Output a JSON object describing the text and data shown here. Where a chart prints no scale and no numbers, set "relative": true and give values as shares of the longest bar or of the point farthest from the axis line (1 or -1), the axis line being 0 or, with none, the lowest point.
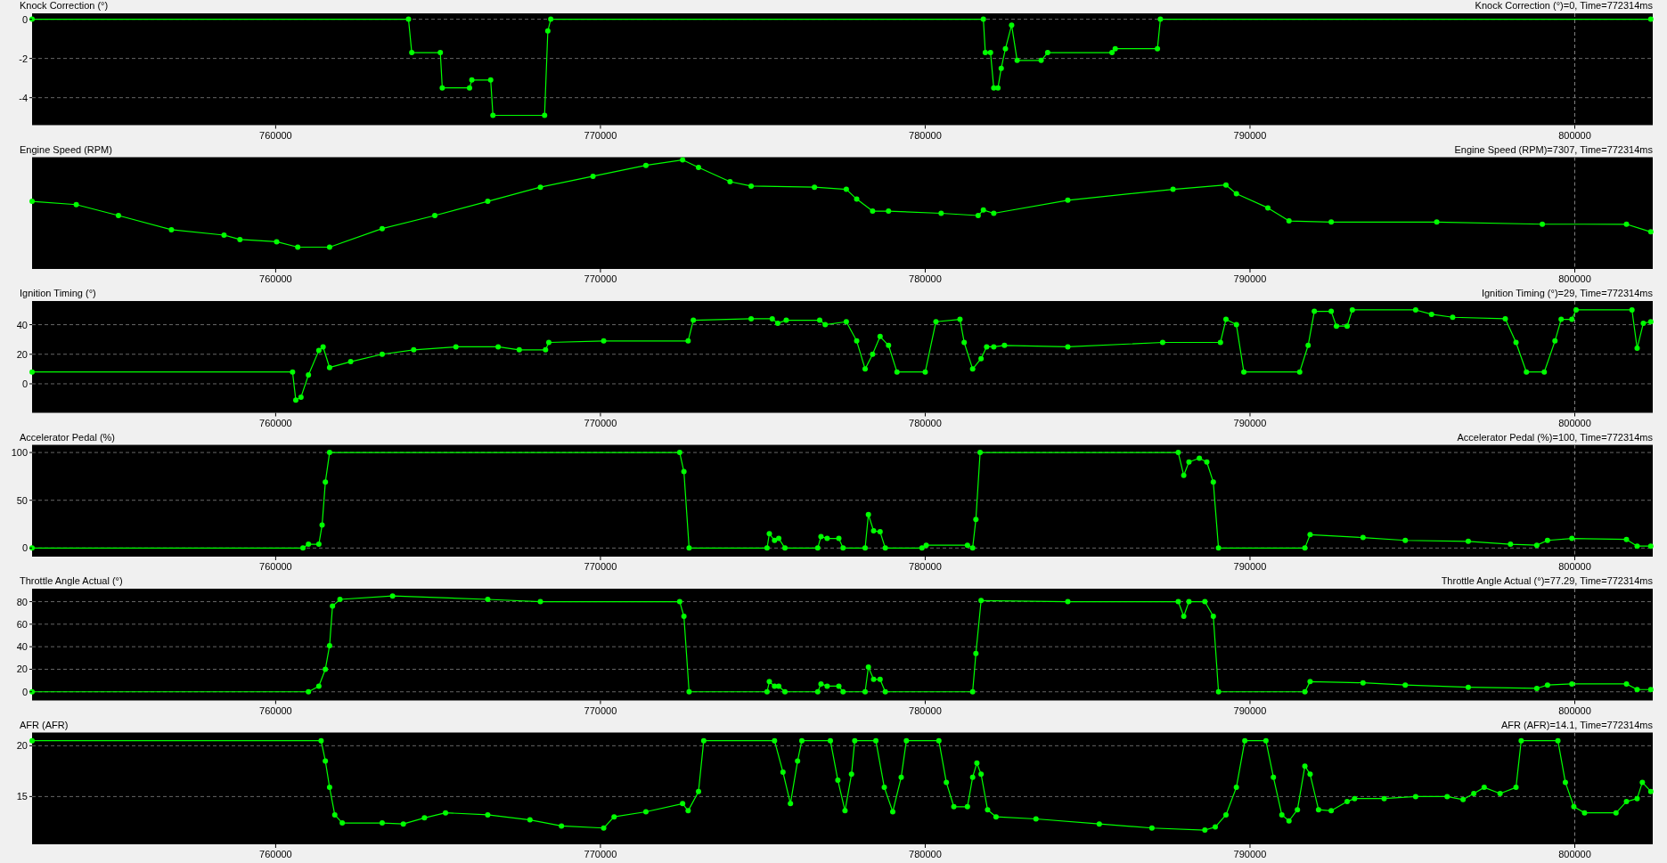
{
  "chart_data": [
    {
      "type": "line",
      "title": "Knock Correction (°)",
      "annotations": [
        "Knock Correction (°)=0, Time=772314ms"
      ],
      "marker": "circle",
      "grid": "y",
      "xlim": [
        752500,
        802400
      ],
      "xticks": [
        760000,
        770000,
        780000,
        790000,
        800000
      ],
      "ylim": [
        -5.4,
        0.3
      ],
      "yticks": [
        -4,
        -2,
        0
      ],
      "ref_lines": [
        {
          "axis": "x",
          "value": 800000,
          "color": "#808080",
          "line_style": "dashed"
        }
      ],
      "x": [
        752500,
        764090,
        764190,
        765070,
        765130,
        765970,
        766040,
        766620,
        766690,
        768280,
        768380,
        768470,
        781790,
        781850,
        782010,
        782110,
        782240,
        782340,
        782470,
        782660,
        782830,
        783570,
        783770,
        785750,
        785850,
        787150,
        787240,
        802340
      ],
      "series": [
        {
          "color": "#00ff00",
          "values": [
            0,
            0,
            -1.7,
            -1.7,
            -3.5,
            -3.5,
            -3.1,
            -3.1,
            -4.9,
            -4.9,
            -0.6,
            0,
            0,
            -1.7,
            -1.7,
            -3.5,
            -3.5,
            -2.5,
            -1.5,
            -0.3,
            -2.1,
            -2.1,
            -1.7,
            -1.7,
            -1.5,
            -1.5,
            0,
            0
          ]
        }
      ]
    },
    {
      "type": "line",
      "title": "Engine Speed (RPM)",
      "annotations": [
        "Engine Speed (RPM)=7307, Time=772314ms"
      ],
      "marker": "circle",
      "relative": true,
      "xlim": [
        752500,
        802400
      ],
      "xticks": [
        760000,
        770000,
        780000,
        790000,
        800000
      ],
      "ref_lines": [
        {
          "axis": "x",
          "value": 800000,
          "color": "#808080",
          "line_style": "dashed"
        }
      ],
      "x": [
        752500,
        753860,
        755160,
        756790,
        758410,
        758900,
        760030,
        760680,
        761660,
        763280,
        764900,
        766530,
        768150,
        769770,
        771400,
        772530,
        773020,
        773990,
        774640,
        776590,
        777570,
        777890,
        778380,
        778870,
        780490,
        781630,
        781790,
        782110,
        784390,
        787630,
        789260,
        789580,
        790550,
        791200,
        792500,
        795750,
        799000,
        801590,
        802340
      ],
      "series": [
        {
          "color": "#00ff00",
          "values": [
            0.62,
            0.59,
            0.49,
            0.36,
            0.31,
            0.27,
            0.25,
            0.2,
            0.2,
            0.37,
            0.49,
            0.62,
            0.75,
            0.85,
            0.95,
            1,
            0.93,
            0.8,
            0.76,
            0.75,
            0.73,
            0.64,
            0.53,
            0.53,
            0.51,
            0.49,
            0.54,
            0.51,
            0.63,
            0.73,
            0.77,
            0.69,
            0.56,
            0.44,
            0.43,
            0.43,
            0.41,
            0.41,
            0.34
          ]
        }
      ]
    },
    {
      "type": "line",
      "title": "Ignition Timing (°)",
      "annotations": [
        "Ignition Timing (°)=29, Time=772314ms"
      ],
      "marker": "circle",
      "grid": "y",
      "xlim": [
        752500,
        802400
      ],
      "xticks": [
        760000,
        770000,
        780000,
        790000,
        800000
      ],
      "ylim": [
        -19.6,
        56
      ],
      "yticks": [
        0,
        20,
        40
      ],
      "ref_lines": [
        {
          "axis": "x",
          "value": 800000,
          "color": "#808080",
          "line_style": "dashed"
        }
      ],
      "x": [
        752500,
        760520,
        760620,
        760780,
        761010,
        761330,
        761460,
        761660,
        762310,
        763280,
        764250,
        765550,
        766850,
        767500,
        768310,
        768410,
        770100,
        772700,
        772860,
        774640,
        775290,
        775460,
        775720,
        776750,
        776920,
        777570,
        777890,
        778150,
        778380,
        778610,
        778870,
        779130,
        780000,
        780330,
        781070,
        781200,
        781460,
        781720,
        781890,
        782110,
        782440,
        784390,
        787310,
        789090,
        789260,
        789580,
        789810,
        791530,
        791790,
        791980,
        792500,
        792660,
        792990,
        793150,
        795100,
        795590,
        796240,
        797860,
        798190,
        798510,
        799060,
        799390,
        799580,
        799910,
        800040,
        801760,
        801920,
        802110,
        802340
      ],
      "series": [
        {
          "color": "#00ff00",
          "values": [
            8,
            8,
            -11,
            -9,
            6,
            22.5,
            25,
            11,
            15,
            20,
            23,
            25,
            25,
            23,
            23,
            28,
            29,
            29,
            43,
            44,
            44,
            41,
            43,
            43,
            40,
            42,
            29,
            10,
            20,
            32,
            26,
            8,
            8,
            42,
            43.6,
            28,
            10,
            17,
            25,
            25,
            26,
            25,
            28,
            28,
            43.6,
            40,
            8,
            8,
            26,
            49,
            49,
            39,
            39,
            50,
            50,
            47,
            45,
            44,
            28,
            8,
            8,
            29,
            43.6,
            43.6,
            50,
            50,
            24,
            41,
            42
          ]
        }
      ]
    },
    {
      "type": "line",
      "title": "Accelerator Pedal (%)",
      "annotations": [
        "Accelerator Pedal (%)=100, Time=772314ms"
      ],
      "marker": "circle",
      "grid": "y",
      "xlim": [
        752500,
        802400
      ],
      "xticks": [
        760000,
        770000,
        780000,
        790000,
        800000
      ],
      "ylim": [
        -9,
        108
      ],
      "yticks": [
        0,
        50,
        100
      ],
      "ref_lines": [
        {
          "axis": "x",
          "value": 800000,
          "color": "#808080",
          "line_style": "dashed"
        }
      ],
      "x": [
        752500,
        760840,
        761010,
        761330,
        761430,
        761530,
        761660,
        772440,
        772570,
        772730,
        775130,
        775200,
        775360,
        775490,
        775680,
        776690,
        776790,
        776980,
        777340,
        777470,
        778150,
        778250,
        778410,
        778610,
        778770,
        779900,
        780030,
        781300,
        781460,
        781560,
        781690,
        787790,
        787960,
        788120,
        788440,
        788670,
        788870,
        789030,
        791690,
        791850,
        793480,
        794780,
        796720,
        798020,
        798830,
        799160,
        799910,
        801590,
        801920,
        802340
      ],
      "series": [
        {
          "color": "#00ff00",
          "values": [
            0,
            0,
            4,
            4,
            24,
            69,
            100,
            100,
            80,
            0,
            0,
            15,
            8,
            10,
            0,
            0,
            12,
            10,
            10,
            0,
            0,
            35,
            18,
            17,
            0,
            0,
            3,
            3,
            0,
            30,
            100,
            100,
            76,
            90,
            94,
            90,
            69,
            0,
            0,
            14,
            11,
            8,
            7,
            4,
            3,
            8,
            10,
            9,
            2,
            2
          ]
        }
      ]
    },
    {
      "type": "line",
      "title": "Throttle Angle Actual (°)",
      "annotations": [
        "Throttle Angle Actual (°)=77.29, Time=772314ms"
      ],
      "marker": "circle",
      "grid": "y",
      "xlim": [
        752500,
        802400
      ],
      "xticks": [
        760000,
        770000,
        780000,
        790000,
        800000
      ],
      "ylim": [
        -7.7,
        91.5
      ],
      "yticks": [
        0,
        20,
        40,
        60,
        80
      ],
      "ref_lines": [
        {
          "axis": "x",
          "value": 800000,
          "color": "#808080",
          "line_style": "dashed"
        }
      ],
      "x": [
        752500,
        761010,
        761330,
        761530,
        761660,
        761750,
        761980,
        763600,
        766530,
        768150,
        772440,
        772570,
        772730,
        775130,
        775200,
        775360,
        775490,
        775680,
        776690,
        776790,
        776980,
        777340,
        777470,
        778150,
        778250,
        778410,
        778610,
        778770,
        781460,
        781560,
        781720,
        784390,
        787790,
        787960,
        788120,
        788610,
        788870,
        789030,
        791690,
        791850,
        793480,
        794780,
        796720,
        798830,
        799160,
        799910,
        801590,
        801920,
        802340
      ],
      "series": [
        {
          "color": "#00ff00",
          "values": [
            0,
            0,
            5,
            20,
            41,
            76,
            82,
            85,
            82,
            80,
            80,
            67,
            0,
            0,
            9,
            5,
            5,
            0,
            0,
            7,
            5,
            5,
            0,
            0,
            22,
            11,
            11,
            0,
            0,
            34,
            81,
            80,
            80,
            67,
            80,
            80,
            67,
            0,
            0,
            9,
            8,
            6,
            4,
            3,
            6,
            7,
            7,
            2,
            2
          ]
        }
      ]
    },
    {
      "type": "line",
      "title": "AFR (AFR)",
      "annotations": [
        "AFR (AFR)=14.1, Time=772314ms"
      ],
      "marker": "circle",
      "grid": "y",
      "xlim": [
        752500,
        802400
      ],
      "xticks": [
        760000,
        770000,
        780000,
        790000,
        800000
      ],
      "ylim": [
        10.3,
        21.3
      ],
      "yticks": [
        15,
        20
      ],
      "ref_lines": [
        {
          "axis": "x",
          "value": 800000,
          "color": "#808080",
          "line_style": "dashed"
        }
      ],
      "x": [
        752500,
        761400,
        761530,
        761660,
        761820,
        762050,
        763280,
        763930,
        764580,
        765230,
        766530,
        767830,
        768800,
        770100,
        770420,
        771400,
        772530,
        772700,
        773020,
        773180,
        775360,
        775620,
        775850,
        776070,
        776200,
        777080,
        777310,
        777530,
        777730,
        777830,
        778480,
        778740,
        779000,
        779260,
        779420,
        780420,
        780650,
        780880,
        781300,
        781460,
        781590,
        781720,
        781920,
        782180,
        783410,
        785360,
        786980,
        788610,
        788930,
        789260,
        789580,
        789840,
        790490,
        790720,
        790980,
        791200,
        791460,
        791690,
        791850,
        792110,
        792500,
        792990,
        793220,
        794130,
        795100,
        796070,
        796560,
        796890,
        797210,
        797700,
        798190,
        798350,
        799480,
        799710,
        799970,
        800300,
        801270,
        801590,
        801920,
        802080,
        802340
      ],
      "series": [
        {
          "color": "#00ff00",
          "values": [
            20.5,
            20.5,
            18.5,
            15.9,
            13.2,
            12.4,
            12.4,
            12.3,
            12.9,
            13.4,
            13.2,
            12.7,
            12.1,
            11.9,
            13,
            13.5,
            14.3,
            13.6,
            15.5,
            20.5,
            20.5,
            17.4,
            14.3,
            18.5,
            20.5,
            20.5,
            16.6,
            13.6,
            17.2,
            20.5,
            20.5,
            15.9,
            13.5,
            16.9,
            20.5,
            20.5,
            16.4,
            14,
            14,
            16.9,
            18.3,
            17.2,
            13.7,
            13,
            12.8,
            12.3,
            11.9,
            11.7,
            12,
            13.2,
            15.9,
            20.5,
            20.5,
            16.9,
            13.2,
            12.6,
            13.7,
            18,
            17.2,
            13.7,
            13.6,
            14.5,
            14.8,
            14.8,
            15,
            15,
            14.7,
            15.3,
            15.9,
            15.3,
            15.9,
            20.5,
            20.5,
            16.4,
            14,
            13.4,
            13.4,
            14.5,
            14.8,
            16.4,
            15.5
          ]
        }
      ]
    }
  ]
}
